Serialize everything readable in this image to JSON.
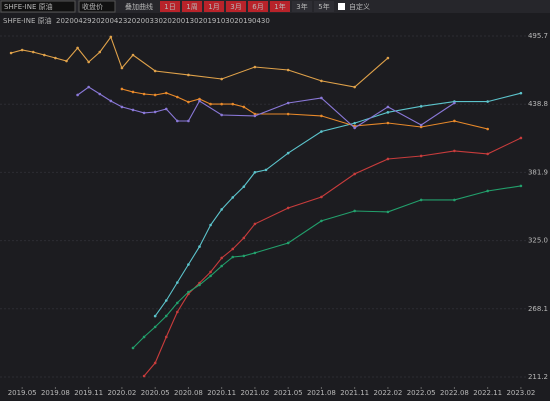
{
  "toolbar": {
    "product": "SHFE-INE 原油",
    "price_type": "收盘价",
    "overlay_label": "叠加曲线",
    "active_ranges": [
      "1日",
      "1周",
      "1月",
      "3月",
      "6月",
      "1年"
    ],
    "ranges": [
      "3年",
      "5年"
    ],
    "custom": "自定义"
  },
  "chart_data": {
    "type": "line",
    "title": "SHFE-INE 原油",
    "xlim": [
      "2019.03",
      "2023.03"
    ],
    "xticks": [
      "2019.05",
      "2019.08",
      "2019.11",
      "2020.02",
      "2020.05",
      "2020.08",
      "2020.11",
      "2021.02",
      "2021.05",
      "2021.08",
      "2021.11",
      "2022.02",
      "2022.05",
      "2022.08",
      "2022.11",
      "2023.02"
    ],
    "ylim": [
      204.5,
      500.7
    ],
    "yticks": [
      {
        "value": 211.2,
        "label": "211.2"
      },
      {
        "value": 268.1,
        "label": "268.1"
      },
      {
        "value": 325,
        "label": "325.0"
      },
      {
        "value": 381.9,
        "label": "381.9"
      },
      {
        "value": 438.8,
        "label": "438.8"
      },
      {
        "value": 495.7,
        "label": "495.7"
      }
    ],
    "grid": true,
    "series": [
      {
        "name": "20200429",
        "color": "#5cc4cc",
        "x": [
          "2020.05",
          "2020.06",
          "2020.07",
          "2020.08",
          "2020.09",
          "2020.10",
          "2020.11",
          "2020.12",
          "2021.01",
          "2021.02",
          "2021.03",
          "2021.05",
          "2021.08",
          "2021.11",
          "2022.02",
          "2022.05",
          "2022.08",
          "2022.11",
          "2023.02"
        ],
        "values": [
          262,
          275,
          290,
          305,
          320,
          338,
          351,
          361,
          370,
          382,
          384,
          398,
          416,
          423,
          432,
          437,
          441,
          441,
          448
        ]
      },
      {
        "name": "20200423",
        "color": "#c83c3c",
        "x": [
          "2020.04",
          "2020.05",
          "2020.06",
          "2020.07",
          "2020.08",
          "2020.09",
          "2020.10",
          "2020.11",
          "2020.12",
          "2021.01",
          "2021.02",
          "2021.05",
          "2021.08",
          "2021.11",
          "2022.02",
          "2022.05",
          "2022.08",
          "2022.11",
          "2023.02"
        ],
        "values": [
          212,
          222.9,
          244.6,
          265.4,
          280.5,
          289.6,
          298.8,
          310.5,
          318,
          327.2,
          338.9,
          352.2,
          361.4,
          380.6,
          393.1,
          395.6,
          399.8,
          397.3,
          410.6
        ]
      },
      {
        "name": "20200330",
        "color": "#22a06c",
        "x": [
          "2020.03",
          "2020.04",
          "2020.05",
          "2020.06",
          "2020.07",
          "2020.08",
          "2020.09",
          "2020.10",
          "2020.11",
          "2020.12",
          "2021.01",
          "2021.02",
          "2021.05",
          "2021.08",
          "2021.11",
          "2022.02",
          "2022.05",
          "2022.08",
          "2022.11",
          "2023.02"
        ],
        "values": [
          235.4,
          244.6,
          253,
          262.1,
          273,
          282.1,
          288,
          295.5,
          303.8,
          311.3,
          312.2,
          314.7,
          323,
          341.4,
          349.7,
          348.9,
          358.9,
          358.9,
          366.4,
          370.6
        ]
      },
      {
        "name": "20200130",
        "color": "#e8892a",
        "x": [
          "2020.02",
          "2020.03",
          "2020.04",
          "2020.05",
          "2020.06",
          "2020.07",
          "2020.08",
          "2020.09",
          "2020.10",
          "2020.11",
          "2020.12",
          "2021.01",
          "2021.02",
          "2021.05",
          "2021.08",
          "2021.11",
          "2022.02",
          "2022.05",
          "2022.08",
          "2022.11"
        ],
        "values": [
          451.5,
          449,
          447.3,
          446.5,
          448.1,
          444.8,
          440.6,
          443.1,
          438.9,
          438.9,
          438.9,
          436.5,
          430.6,
          430.6,
          429,
          420.6,
          423.1,
          419.8,
          424.8,
          418.1
        ]
      },
      {
        "name": "20191030",
        "color": "#8a78d8",
        "x": [
          "2019.10",
          "2019.11",
          "2019.12",
          "2020.01",
          "2020.02",
          "2020.03",
          "2020.04",
          "2020.05",
          "2020.06",
          "2020.07",
          "2020.08",
          "2020.09",
          "2020.11",
          "2021.02",
          "2021.05",
          "2021.08",
          "2021.11",
          "2022.02",
          "2022.05",
          "2022.08"
        ],
        "values": [
          446.5,
          453.1,
          447.3,
          441.5,
          436.5,
          434,
          431.5,
          432.3,
          434.8,
          424.8,
          424.8,
          441.5,
          429.8,
          429,
          439.8,
          444,
          419,
          436.5,
          421.4,
          439.8
        ]
      },
      {
        "name": "20190430",
        "color": "#e0a24a",
        "x": [
          "2019.04",
          "2019.05",
          "2019.06",
          "2019.07",
          "2019.08",
          "2019.09",
          "2019.10",
          "2019.11",
          "2019.12",
          "2020.01",
          "2020.02",
          "2020.03",
          "2020.05",
          "2020.08",
          "2020.11",
          "2021.02",
          "2021.05",
          "2021.08",
          "2021.11",
          "2022.02"
        ],
        "values": [
          481.5,
          484,
          482.3,
          479.8,
          477.3,
          474.8,
          485.7,
          474,
          482.3,
          494.9,
          469,
          479.8,
          466.5,
          463.2,
          459.8,
          469.8,
          467.3,
          458.2,
          453.1,
          477.3
        ]
      }
    ]
  }
}
